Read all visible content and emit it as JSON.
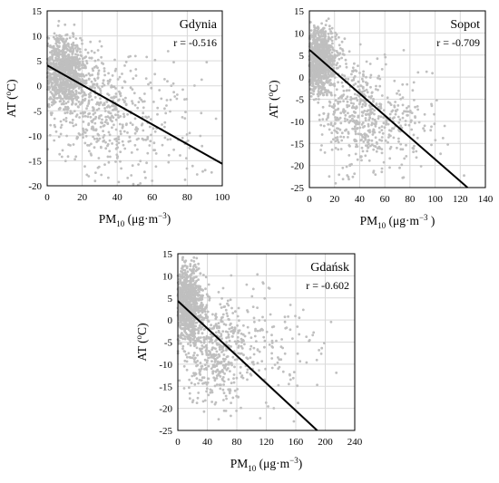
{
  "chart_data": [
    {
      "type": "scatter",
      "station": "Gdynia",
      "r_label": "r = -0.516",
      "xlabel": {
        "main": "PM",
        "sub": "10",
        "unit_open": " (μg·m",
        "sup": "−3",
        "unit_close": ")"
      },
      "ylabel": {
        "main": "AT (",
        "sup": "o",
        "unit": "C)"
      },
      "xlim": [
        0,
        100
      ],
      "ylim": [
        -20,
        15
      ],
      "xticks": [
        0,
        20,
        40,
        60,
        80,
        100
      ],
      "yticks": [
        -20,
        -15,
        -10,
        -5,
        0,
        5,
        10,
        15
      ],
      "grid": true,
      "point_color": "#bfbfbf",
      "line_color": "#000000",
      "regression": {
        "intercept": 4.1,
        "slope": -0.197
      },
      "points": {
        "n": 1450,
        "clusters": [
          {
            "fraction": 0.6,
            "x_mean": 10,
            "x_sd": 6,
            "y_mean": 3,
            "y_sd": 3.3
          },
          {
            "fraction": 0.28,
            "x_mean": 28,
            "x_sd": 13,
            "y_mean": -5,
            "y_sd": 6
          },
          {
            "fraction": 0.12,
            "x_mean": 55,
            "x_sd": 18,
            "y_mean": -8,
            "y_sd": 6
          }
        ]
      }
    },
    {
      "type": "scatter",
      "station": "Sopot",
      "r_label": "r = -0.709",
      "xlabel": {
        "main": "PM",
        "sub": "10",
        "unit_open": " (μg·m",
        "sup": "−3",
        "unit_close": " )"
      },
      "ylabel": {
        "main": "AT (",
        "sup": "o",
        "unit": "C)"
      },
      "xlim": [
        0,
        140
      ],
      "ylim": [
        -25,
        15
      ],
      "xticks": [
        0,
        20,
        40,
        60,
        80,
        100,
        120,
        140
      ],
      "yticks": [
        -25,
        -20,
        -15,
        -10,
        -5,
        0,
        5,
        10,
        15
      ],
      "grid": true,
      "point_color": "#bfbfbf",
      "line_color": "#000000",
      "regression": {
        "intercept": 6.2,
        "slope": -0.248
      },
      "points": {
        "n": 1450,
        "clusters": [
          {
            "fraction": 0.6,
            "x_mean": 9,
            "x_sd": 6,
            "y_mean": 4,
            "y_sd": 3.5
          },
          {
            "fraction": 0.27,
            "x_mean": 38,
            "x_sd": 15,
            "y_mean": -8,
            "y_sd": 6
          },
          {
            "fraction": 0.13,
            "x_mean": 65,
            "x_sd": 20,
            "y_mean": -11,
            "y_sd": 6
          }
        ]
      }
    },
    {
      "type": "scatter",
      "station": "Gdańsk",
      "r_label": "r = -0.602",
      "xlabel": {
        "main": "PM",
        "sub": "10",
        "unit_open": " (μg·m",
        "sup": "−3",
        "unit_close": ")"
      },
      "ylabel": {
        "main": "AT (",
        "sup": "o",
        "unit": "C)"
      },
      "xlim": [
        0,
        240
      ],
      "ylim": [
        -25,
        15
      ],
      "xticks": [
        0,
        40,
        80,
        120,
        160,
        200,
        240
      ],
      "yticks": [
        -25,
        -20,
        -15,
        -10,
        -5,
        0,
        5,
        10,
        15
      ],
      "grid": true,
      "point_color": "#bfbfbf",
      "line_color": "#000000",
      "regression": {
        "intercept": 4.3,
        "slope": -0.155
      },
      "points": {
        "n": 1450,
        "clusters": [
          {
            "fraction": 0.58,
            "x_mean": 14,
            "x_sd": 10,
            "y_mean": 4,
            "y_sd": 4
          },
          {
            "fraction": 0.3,
            "x_mean": 50,
            "x_sd": 22,
            "y_mean": -7,
            "y_sd": 6
          },
          {
            "fraction": 0.12,
            "x_mean": 110,
            "x_sd": 45,
            "y_mean": -6,
            "y_sd": 6
          }
        ]
      }
    }
  ]
}
